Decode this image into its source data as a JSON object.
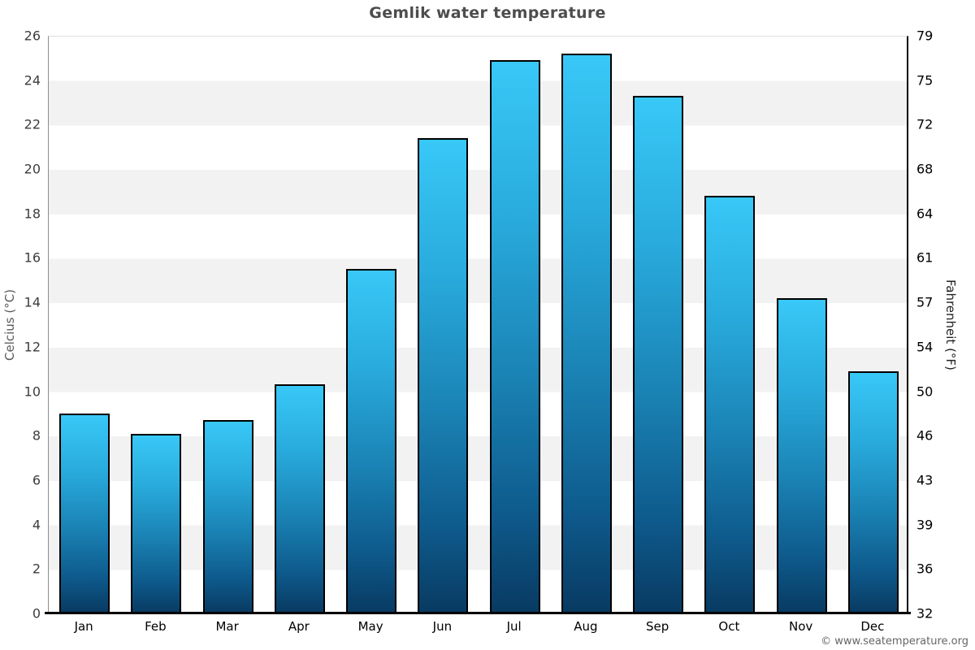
{
  "footer": "© www.seatemperature.org",
  "chart_data": {
    "type": "bar",
    "title": "Gemlik water temperature",
    "categories": [
      "Jan",
      "Feb",
      "Mar",
      "Apr",
      "May",
      "Jun",
      "Jul",
      "Aug",
      "Sep",
      "Oct",
      "Nov",
      "Dec"
    ],
    "values": [
      9.0,
      8.1,
      8.7,
      10.3,
      15.5,
      21.4,
      24.9,
      25.2,
      23.3,
      18.8,
      14.2,
      10.9
    ],
    "ylabel_left": "Celcius (°C)",
    "ylabel_right": "Fahrenheit (°F)",
    "ylim": [
      0,
      26
    ],
    "celsius_ticks": [
      0,
      2,
      4,
      6,
      8,
      10,
      12,
      14,
      16,
      18,
      20,
      22,
      24,
      26
    ],
    "fahrenheit_ticks": [
      32,
      36,
      39,
      43,
      46,
      50,
      54,
      57,
      61,
      64,
      68,
      72,
      75,
      79
    ],
    "legend_position": "none",
    "grid": "alternating horizontal bands every 2 C",
    "colors": {
      "bar_gradient_top": "#38c8f7",
      "bar_gradient_upper_mid": "#29abdd",
      "bar_gradient_mid": "#1b84b6",
      "bar_gradient_lower_mid": "#0e5a8c",
      "bar_gradient_bottom": "#083a61",
      "bar_border": "#000000",
      "band_gray": "#f2f2f2",
      "band_white": "#ffffff",
      "title_text": "#4d4d4d",
      "footer_text": "#666666"
    }
  }
}
